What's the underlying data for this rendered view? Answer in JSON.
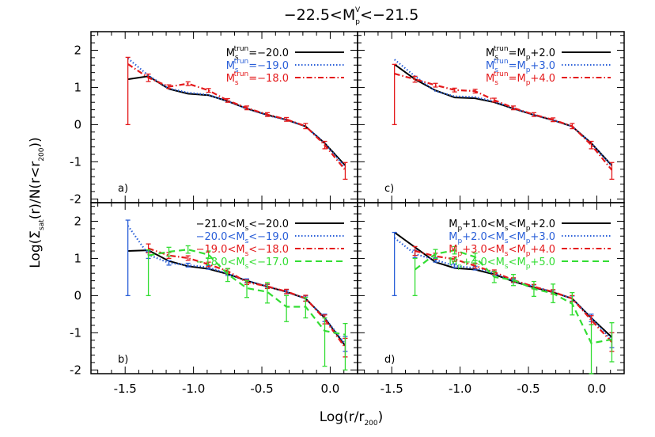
{
  "chart_data": {
    "type": "line",
    "title": "−22.5<M_p^V<−21.5",
    "title_parts": {
      "pre": "−22.5<M",
      "sub": "p",
      "sup": "V",
      "post": "<−21.5"
    },
    "xlabel": "Log(r/r_200)",
    "xlabel_parts": {
      "pre": "Log(r/r",
      "sub": "200",
      "post": ")"
    },
    "ylabel": "Log(Σ_sat(r)/N(r<r_200))",
    "ylabel_parts": {
      "pre": "Log(Σ",
      "sub1": "sat",
      "mid": "(r)/N(r<r",
      "sub2": "200",
      "post": "))"
    },
    "xlim": [
      -1.75,
      0.2
    ],
    "ylim": [
      -2.1,
      2.5
    ],
    "xticks": [
      -1.5,
      -1.0,
      -0.5,
      0.0
    ],
    "xtick_labels": [
      "-1.5",
      "-1.0",
      "-0.5",
      "0.0"
    ],
    "yticks": [
      -2,
      -1,
      0,
      1,
      2
    ],
    "ytick_labels": [
      "-2",
      "-1",
      "0",
      "1",
      "2"
    ],
    "legend_placement": "top-right",
    "colors": {
      "black": "#000000",
      "blue": "#2a5fd8",
      "red": "#e41a1c",
      "green": "#33dd33"
    },
    "panels": [
      {
        "label": "a)",
        "legend": [
          {
            "pre": "M",
            "sub": "s",
            "sup": "trun",
            "post": "=−20.0"
          },
          {
            "pre": "M",
            "sub": "s",
            "sup": "trun",
            "post": "=−19.0"
          },
          {
            "pre": "M",
            "sub": "s",
            "sup": "trun",
            "post": "=−18.0"
          }
        ],
        "series": [
          {
            "color": "black",
            "style": "solid",
            "x": [
              -1.48,
              -1.33,
              -1.18,
              -1.04,
              -0.89,
              -0.75,
              -0.61,
              -0.46,
              -0.32,
              -0.18,
              -0.04,
              0.11
            ],
            "y": [
              1.22,
              1.3,
              0.96,
              0.83,
              0.79,
              0.63,
              0.43,
              0.26,
              0.13,
              -0.05,
              -0.5,
              -1.1
            ]
          },
          {
            "color": "blue",
            "style": "dotted",
            "x": [
              -1.48,
              -1.33,
              -1.18,
              -1.04,
              -0.89,
              -0.75,
              -0.61,
              -0.46,
              -0.32,
              -0.18,
              -0.04,
              0.11
            ],
            "y": [
              1.78,
              1.32,
              0.97,
              0.86,
              0.8,
              0.63,
              0.43,
              0.25,
              0.13,
              -0.05,
              -0.5,
              -1.15
            ]
          },
          {
            "color": "red",
            "style": "dashdot",
            "x": [
              -1.48,
              -1.33,
              -1.18,
              -1.04,
              -0.89,
              -0.75,
              -0.61,
              -0.46,
              -0.32,
              -0.18,
              -0.04,
              0.11
            ],
            "y": [
              1.63,
              1.26,
              1.02,
              1.1,
              0.92,
              0.65,
              0.45,
              0.27,
              0.14,
              -0.04,
              -0.55,
              -1.22
            ],
            "err_lo": [
              1.63,
              0.1,
              0.05,
              0.05,
              0.05,
              0.05,
              0.05,
              0.05,
              0.05,
              0.07,
              0.1,
              0.25
            ],
            "err_hi": [
              0.18,
              0.1,
              0.05,
              0.05,
              0.05,
              0.05,
              0.05,
              0.05,
              0.05,
              0.07,
              0.1,
              0.2
            ]
          }
        ]
      },
      {
        "label": "c)",
        "legend": [
          {
            "pre": "M",
            "sub": "s",
            "sup": "trun",
            "post": "=M",
            "sub2": "p",
            "post2": "+2.0"
          },
          {
            "pre": "M",
            "sub": "s",
            "sup": "trun",
            "post": "=M",
            "sub2": "p",
            "post2": "+3.0"
          },
          {
            "pre": "M",
            "sub": "s",
            "sup": "trun",
            "post": "=M",
            "sub2": "p",
            "post2": "+4.0"
          }
        ],
        "series": [
          {
            "color": "black",
            "style": "solid",
            "x": [
              -1.48,
              -1.33,
              -1.18,
              -1.04,
              -0.89,
              -0.75,
              -0.61,
              -0.46,
              -0.32,
              -0.18,
              -0.04,
              0.11
            ],
            "y": [
              1.62,
              1.22,
              0.92,
              0.73,
              0.71,
              0.6,
              0.43,
              0.26,
              0.12,
              -0.05,
              -0.5,
              -1.1
            ]
          },
          {
            "color": "blue",
            "style": "dotted",
            "x": [
              -1.48,
              -1.33,
              -1.18,
              -1.04,
              -0.89,
              -0.75,
              -0.61,
              -0.46,
              -0.32,
              -0.18,
              -0.04,
              0.11
            ],
            "y": [
              1.75,
              1.3,
              0.9,
              0.76,
              0.74,
              0.62,
              0.44,
              0.26,
              0.12,
              -0.05,
              -0.5,
              -1.12
            ]
          },
          {
            "color": "red",
            "style": "dashdot",
            "x": [
              -1.48,
              -1.33,
              -1.18,
              -1.04,
              -0.89,
              -0.75,
              -0.61,
              -0.46,
              -0.32,
              -0.18,
              -0.04,
              0.11
            ],
            "y": [
              1.37,
              1.22,
              1.06,
              0.93,
              0.9,
              0.66,
              0.45,
              0.27,
              0.13,
              -0.04,
              -0.55,
              -1.22
            ],
            "err_lo": [
              1.37,
              0.08,
              0.05,
              0.05,
              0.05,
              0.05,
              0.05,
              0.05,
              0.05,
              0.07,
              0.1,
              0.25
            ],
            "err_hi": [
              0.25,
              0.08,
              0.05,
              0.05,
              0.05,
              0.05,
              0.05,
              0.05,
              0.05,
              0.07,
              0.1,
              0.2
            ]
          }
        ]
      },
      {
        "label": "b)",
        "legend": [
          {
            "pre": "−21.0<M",
            "sub": "s",
            "post": "<−20.0"
          },
          {
            "pre": "−20.0<M",
            "sub": "s",
            "post": "<−19.0"
          },
          {
            "pre": "−19.0<M",
            "sub": "s",
            "post": "<−18.0"
          },
          {
            "pre": "−18.0<M",
            "sub": "s",
            "post": "<−17.0"
          }
        ],
        "series": [
          {
            "color": "black",
            "style": "solid",
            "x": [
              -1.48,
              -1.33,
              -1.18,
              -1.04,
              -0.89,
              -0.75,
              -0.61,
              -0.46,
              -0.32,
              -0.18,
              -0.04,
              0.11
            ],
            "y": [
              1.2,
              1.22,
              0.93,
              0.79,
              0.72,
              0.58,
              0.4,
              0.24,
              0.1,
              -0.08,
              -0.6,
              -1.35
            ]
          },
          {
            "color": "blue",
            "style": "dotted",
            "x": [
              -1.48,
              -1.33,
              -1.18,
              -1.04,
              -0.89,
              -0.75,
              -0.61,
              -0.46,
              -0.32,
              -0.18,
              -0.04,
              0.11
            ],
            "y": [
              1.88,
              1.1,
              0.88,
              0.82,
              0.76,
              0.59,
              0.4,
              0.25,
              0.1,
              -0.08,
              -0.6,
              -1.3
            ],
            "err_lo": [
              1.88,
              0.1,
              0.06,
              0.05,
              0.05,
              0.05,
              0.05,
              0.05,
              0.05,
              0.07,
              0.1,
              0.2
            ],
            "err_hi": [
              0.15,
              0.1,
              0.06,
              0.05,
              0.05,
              0.05,
              0.05,
              0.05,
              0.05,
              0.07,
              0.1,
              0.2
            ]
          },
          {
            "color": "red",
            "style": "dashdot",
            "x": [
              -1.33,
              -1.18,
              -1.04,
              -0.89,
              -0.75,
              -0.61,
              -0.46,
              -0.32,
              -0.18,
              -0.04,
              0.11
            ],
            "y": [
              1.27,
              1.08,
              1.01,
              0.84,
              0.66,
              0.36,
              0.25,
              0.11,
              -0.07,
              -0.64,
              -1.4
            ],
            "err_lo": [
              0.12,
              0.08,
              0.06,
              0.06,
              0.06,
              0.06,
              0.06,
              0.06,
              0.08,
              0.12,
              0.25
            ],
            "err_hi": [
              0.12,
              0.08,
              0.06,
              0.06,
              0.06,
              0.06,
              0.06,
              0.06,
              0.08,
              0.12,
              0.25
            ]
          },
          {
            "color": "green",
            "style": "dashed",
            "x": [
              -1.33,
              -1.18,
              -1.04,
              -0.89,
              -0.75,
              -0.61,
              -0.46,
              -0.32,
              -0.18,
              -0.04,
              0.11
            ],
            "y": [
              1.08,
              1.18,
              1.24,
              1.1,
              0.58,
              0.2,
              0.1,
              -0.3,
              -0.3,
              -0.95,
              -1.05
            ],
            "err_lo": [
              1.08,
              0.12,
              0.1,
              0.1,
              0.2,
              0.25,
              0.3,
              0.4,
              0.3,
              0.95,
              0.95
            ],
            "err_hi": [
              0.15,
              0.12,
              0.1,
              0.1,
              0.15,
              0.2,
              0.25,
              0.3,
              0.25,
              0.35,
              0.3
            ]
          }
        ]
      },
      {
        "label": "d)",
        "legend": [
          {
            "pre": "M",
            "sub": "p",
            "post": "+1.0<M",
            "sub2": "s",
            "post2": "<M",
            "sub3": "p",
            "post3": "+2.0"
          },
          {
            "pre": "M",
            "sub": "p",
            "post": "+2.0<M",
            "sub2": "s",
            "post2": "<M",
            "sub3": "p",
            "post3": "+3.0"
          },
          {
            "pre": "M",
            "sub": "p",
            "post": "+3.0<M",
            "sub2": "s",
            "post2": "<M",
            "sub3": "p",
            "post3": "+4.0"
          },
          {
            "pre": "M",
            "sub": "p",
            "post": "+4.0<M",
            "sub2": "s",
            "post2": "<M",
            "sub3": "p",
            "post3": "+5.0"
          }
        ],
        "series": [
          {
            "color": "black",
            "style": "solid",
            "x": [
              -1.48,
              -1.33,
              -1.18,
              -1.04,
              -0.89,
              -0.75,
              -0.61,
              -0.46,
              -0.32,
              -0.18,
              -0.04,
              0.11
            ],
            "y": [
              1.7,
              1.3,
              0.9,
              0.74,
              0.7,
              0.57,
              0.38,
              0.22,
              0.09,
              -0.08,
              -0.6,
              -1.12
            ]
          },
          {
            "color": "blue",
            "style": "dotted",
            "x": [
              -1.48,
              -1.33,
              -1.18,
              -1.04,
              -0.89,
              -0.75,
              -0.61,
              -0.46,
              -0.32,
              -0.18,
              -0.04,
              0.11
            ],
            "y": [
              1.55,
              1.12,
              0.96,
              0.8,
              0.74,
              0.6,
              0.4,
              0.24,
              0.1,
              -0.08,
              -0.6,
              -1.2
            ],
            "err_lo": [
              1.55,
              0.1,
              0.06,
              0.05,
              0.05,
              0.05,
              0.05,
              0.05,
              0.05,
              0.07,
              0.1,
              0.2
            ],
            "err_hi": [
              0.15,
              0.1,
              0.06,
              0.05,
              0.05,
              0.05,
              0.05,
              0.05,
              0.05,
              0.07,
              0.1,
              0.2
            ]
          },
          {
            "color": "red",
            "style": "dashdot",
            "x": [
              -1.33,
              -1.18,
              -1.04,
              -0.89,
              -0.75,
              -0.61,
              -0.46,
              -0.32,
              -0.18,
              -0.04,
              0.11
            ],
            "y": [
              1.2,
              1.06,
              0.98,
              0.8,
              0.63,
              0.42,
              0.24,
              0.1,
              -0.08,
              -0.66,
              -1.25
            ],
            "err_lo": [
              0.12,
              0.08,
              0.06,
              0.06,
              0.06,
              0.06,
              0.06,
              0.06,
              0.08,
              0.12,
              0.25
            ],
            "err_hi": [
              0.12,
              0.08,
              0.06,
              0.06,
              0.06,
              0.06,
              0.06,
              0.06,
              0.08,
              0.12,
              0.25
            ]
          },
          {
            "color": "green",
            "style": "dashed",
            "x": [
              -1.33,
              -1.18,
              -1.04,
              -0.89,
              -0.75,
              -0.61,
              -0.46,
              -0.32,
              -0.18,
              -0.04,
              0.11
            ],
            "y": [
              0.7,
              1.12,
              1.22,
              1.04,
              0.5,
              0.42,
              0.18,
              0.06,
              -0.22,
              -1.28,
              -1.18
            ],
            "err_lo": [
              0.7,
              0.12,
              0.1,
              0.1,
              0.15,
              0.15,
              0.2,
              0.25,
              0.3,
              0.9,
              0.6
            ],
            "err_hi": [
              0.3,
              0.12,
              0.1,
              0.1,
              0.15,
              0.15,
              0.2,
              0.25,
              0.3,
              0.5,
              0.45
            ]
          }
        ]
      }
    ]
  }
}
